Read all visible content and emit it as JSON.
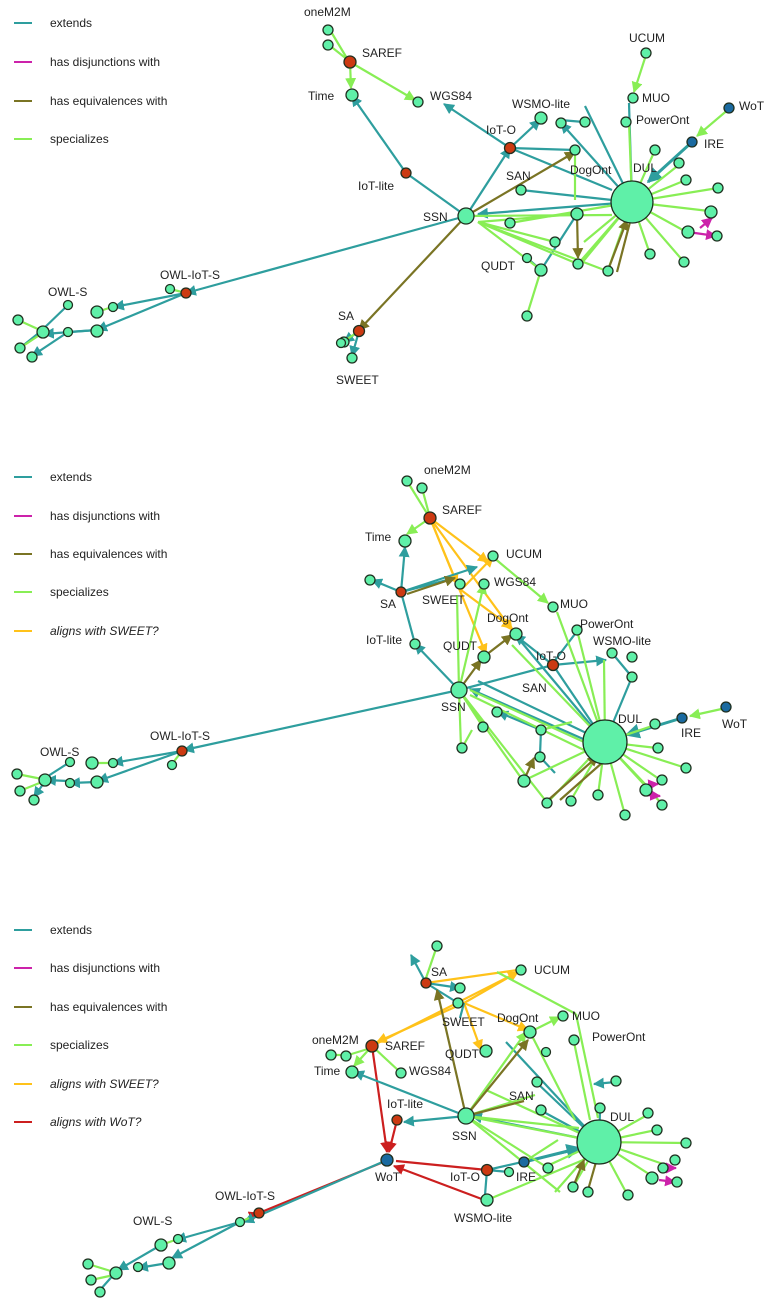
{
  "colors": {
    "extends": "#2e9e9e",
    "disjunction": "#cc22aa",
    "equivalence": "#7a7424",
    "specializes": "#88ee55",
    "sweet": "#ffc21a",
    "wot": "#cc1f1f",
    "node_green": "#5ff0a8",
    "node_red": "#cc3a12",
    "node_blue": "#1a6aa0"
  },
  "panels": [
    {
      "legend": [
        {
          "label": "extends",
          "kind": "extends",
          "italic": false
        },
        {
          "label": "has disjunctions with",
          "kind": "disjunction",
          "italic": false
        },
        {
          "label": "has equivalences with",
          "kind": "equivalence",
          "italic": false
        },
        {
          "label": "specializes",
          "kind": "specializes",
          "italic": false
        }
      ],
      "labels": [
        "oneM2M",
        "SAREF",
        "Time",
        "WGS84",
        "WSMO-lite",
        "UCUM",
        "MUO",
        "PowerOnt",
        "WoT",
        "IRE",
        "IoT-O",
        "DogOnt",
        "DUL",
        "SAN",
        "IoT-lite",
        "SSN",
        "QUDT",
        "OWL-IoT-S",
        "OWL-S",
        "SA",
        "SWEET"
      ]
    },
    {
      "legend": [
        {
          "label": "extends",
          "kind": "extends",
          "italic": false
        },
        {
          "label": "has disjunctions with",
          "kind": "disjunction",
          "italic": false
        },
        {
          "label": "has equivalences with",
          "kind": "equivalence",
          "italic": false
        },
        {
          "label": "specializes",
          "kind": "specializes",
          "italic": false
        },
        {
          "label": "aligns with SWEET?",
          "kind": "sweet",
          "italic": true
        }
      ],
      "labels": [
        "oneM2M",
        "SAREF",
        "Time",
        "UCUM",
        "SA",
        "SWEET",
        "WGS84",
        "MUO",
        "DogOnt",
        "PowerOnt",
        "IoT-lite",
        "QUDT",
        "WSMO-lite",
        "IoT-O",
        "SAN",
        "SSN",
        "DUL",
        "IRE",
        "WoT",
        "OWL-IoT-S",
        "OWL-S"
      ]
    },
    {
      "legend": [
        {
          "label": "extends",
          "kind": "extends",
          "italic": false
        },
        {
          "label": "has disjunctions with",
          "kind": "disjunction",
          "italic": false
        },
        {
          "label": "has equivalences with",
          "kind": "equivalence",
          "italic": false
        },
        {
          "label": "specializes",
          "kind": "specializes",
          "italic": false
        },
        {
          "label": "aligns with SWEET?",
          "kind": "sweet",
          "italic": true
        },
        {
          "label": "aligns with WoT?",
          "kind": "wot",
          "italic": true
        }
      ],
      "labels": [
        "SA",
        "UCUM",
        "oneM2M",
        "SWEET",
        "DogOnt",
        "MUO",
        "SAREF",
        "PowerOnt",
        "QUDT",
        "Time",
        "WGS84",
        "IoT-lite",
        "SAN",
        "SSN",
        "DUL",
        "WoT",
        "IoT-O",
        "IRE",
        "OWL-IoT-S",
        "WSMO-lite",
        "OWL-S"
      ]
    }
  ]
}
